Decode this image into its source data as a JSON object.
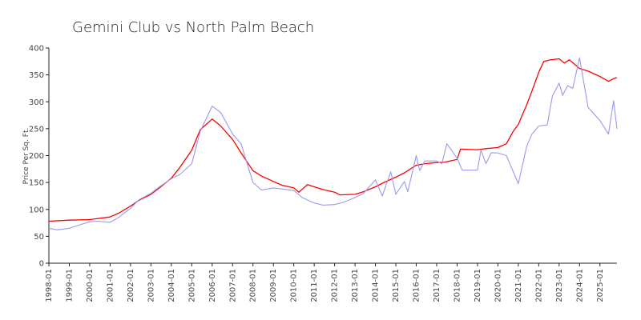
{
  "chart_data": {
    "type": "line",
    "title": "Gemini Club vs North Palm Beach",
    "xlabel": "",
    "ylabel": "Price Per Sq. Ft.",
    "ylim": [
      0,
      400
    ],
    "y_ticks": [
      "0",
      "50",
      "100",
      "150",
      "200",
      "250",
      "300",
      "350",
      "400"
    ],
    "x_ticks": [
      "1998-01",
      "1999-01",
      "2000-01",
      "2001-01",
      "2002-01",
      "2003-01",
      "2004-01",
      "2005-01",
      "2006-01",
      "2007-01",
      "2008-01",
      "2009-01",
      "2010-01",
      "2011-01",
      "2012-01",
      "2013-01",
      "2014-01",
      "2015-01",
      "2016-01",
      "2017-01",
      "2018-01",
      "2019-01",
      "2020-01",
      "2021-01",
      "2022-01",
      "2023-01",
      "2024-01",
      "2025-01"
    ],
    "xlim": [
      "1998-01",
      "2025-11"
    ],
    "grid": false,
    "legend": "none",
    "series": [
      {
        "color": "#ff0000",
        "points": [
          [
            "1998-01",
            78
          ],
          [
            "1999-01",
            80
          ],
          [
            "2000-01",
            81
          ],
          [
            "2001-01",
            86
          ],
          [
            "2001-06",
            93
          ],
          [
            "2002-01",
            106
          ],
          [
            "2002-06",
            117
          ],
          [
            "2003-01",
            128
          ],
          [
            "2003-06",
            140
          ],
          [
            "2004-01",
            158
          ],
          [
            "2004-06",
            178
          ],
          [
            "2005-01",
            210
          ],
          [
            "2005-06",
            248
          ],
          [
            "2006-01",
            268
          ],
          [
            "2006-06",
            255
          ],
          [
            "2007-01",
            230
          ],
          [
            "2007-06",
            205
          ],
          [
            "2008-01",
            172
          ],
          [
            "2008-06",
            162
          ],
          [
            "2009-01",
            152
          ],
          [
            "2009-06",
            145
          ],
          [
            "2010-01",
            140
          ],
          [
            "2010-04",
            132
          ],
          [
            "2010-09",
            146
          ],
          [
            "2011-01",
            142
          ],
          [
            "2011-06",
            137
          ],
          [
            "2012-01",
            132
          ],
          [
            "2012-04",
            127
          ],
          [
            "2013-01",
            128
          ],
          [
            "2013-06",
            133
          ],
          [
            "2014-01",
            142
          ],
          [
            "2014-06",
            150
          ],
          [
            "2015-01",
            160
          ],
          [
            "2015-06",
            168
          ],
          [
            "2016-01",
            182
          ],
          [
            "2016-06",
            185
          ],
          [
            "2017-01",
            187
          ],
          [
            "2017-06",
            188
          ],
          [
            "2018-01",
            193
          ],
          [
            "2018-03",
            212
          ],
          [
            "2019-01",
            211
          ],
          [
            "2019-06",
            213
          ],
          [
            "2020-01",
            215
          ],
          [
            "2020-06",
            222
          ],
          [
            "2020-10",
            245
          ],
          [
            "2021-01",
            258
          ],
          [
            "2021-06",
            295
          ],
          [
            "2021-09",
            320
          ],
          [
            "2022-01",
            355
          ],
          [
            "2022-04",
            375
          ],
          [
            "2022-08",
            378
          ],
          [
            "2023-01",
            380
          ],
          [
            "2023-04",
            372
          ],
          [
            "2023-07",
            378
          ],
          [
            "2024-01",
            362
          ],
          [
            "2024-06",
            357
          ],
          [
            "2025-01",
            347
          ],
          [
            "2025-06",
            338
          ],
          [
            "2025-09",
            343
          ],
          [
            "2025-11",
            345
          ]
        ]
      },
      {
        "color": "#9999ee",
        "points": [
          [
            "1998-01",
            65
          ],
          [
            "1998-06",
            62
          ],
          [
            "1999-01",
            65
          ],
          [
            "1999-06",
            70
          ],
          [
            "2000-01",
            77
          ],
          [
            "2000-06",
            78
          ],
          [
            "2001-01",
            76
          ],
          [
            "2001-06",
            85
          ],
          [
            "2002-01",
            102
          ],
          [
            "2002-06",
            118
          ],
          [
            "2003-01",
            130
          ],
          [
            "2003-06",
            142
          ],
          [
            "2004-01",
            157
          ],
          [
            "2004-06",
            165
          ],
          [
            "2005-01",
            185
          ],
          [
            "2005-06",
            245
          ],
          [
            "2006-01",
            292
          ],
          [
            "2006-06",
            280
          ],
          [
            "2007-01",
            240
          ],
          [
            "2007-06",
            222
          ],
          [
            "2008-01",
            150
          ],
          [
            "2008-06",
            136
          ],
          [
            "2009-01",
            140
          ],
          [
            "2009-06",
            138
          ],
          [
            "2010-01",
            135
          ],
          [
            "2010-06",
            122
          ],
          [
            "2011-01",
            112
          ],
          [
            "2011-06",
            108
          ],
          [
            "2012-01",
            109
          ],
          [
            "2012-06",
            113
          ],
          [
            "2013-01",
            122
          ],
          [
            "2013-06",
            130
          ],
          [
            "2014-01",
            155
          ],
          [
            "2014-05",
            125
          ],
          [
            "2014-10",
            170
          ],
          [
            "2015-01",
            128
          ],
          [
            "2015-06",
            152
          ],
          [
            "2015-08",
            133
          ],
          [
            "2016-01",
            200
          ],
          [
            "2016-03",
            172
          ],
          [
            "2016-06",
            190
          ],
          [
            "2017-01",
            190
          ],
          [
            "2017-04",
            185
          ],
          [
            "2017-07",
            222
          ],
          [
            "2018-01",
            195
          ],
          [
            "2018-04",
            173
          ],
          [
            "2019-01",
            173
          ],
          [
            "2019-03",
            210
          ],
          [
            "2019-06",
            185
          ],
          [
            "2019-09",
            205
          ],
          [
            "2020-01",
            205
          ],
          [
            "2020-06",
            200
          ],
          [
            "2021-01",
            148
          ],
          [
            "2021-06",
            218
          ],
          [
            "2021-09",
            240
          ],
          [
            "2022-01",
            255
          ],
          [
            "2022-06",
            257
          ],
          [
            "2022-09",
            310
          ],
          [
            "2023-01",
            335
          ],
          [
            "2023-03",
            312
          ],
          [
            "2023-06",
            330
          ],
          [
            "2023-09",
            325
          ],
          [
            "2024-01",
            382
          ],
          [
            "2024-06",
            290
          ],
          [
            "2025-01",
            265
          ],
          [
            "2025-06",
            240
          ],
          [
            "2025-09",
            302
          ],
          [
            "2025-11",
            250
          ]
        ]
      }
    ]
  }
}
